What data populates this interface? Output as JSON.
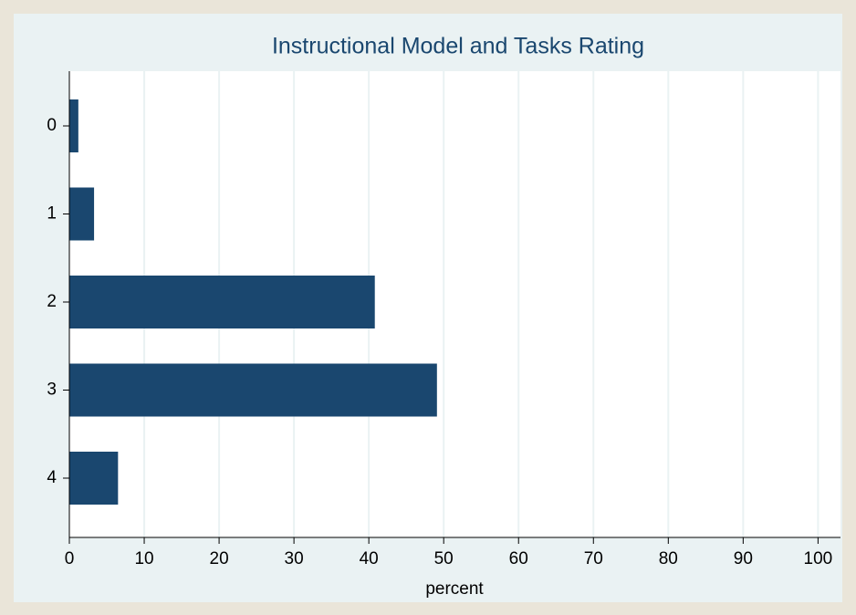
{
  "chart_data": {
    "type": "bar",
    "orientation": "horizontal",
    "title": "Instructional Model and Tasks Rating",
    "categories": [
      "0",
      "1",
      "2",
      "3",
      "4"
    ],
    "values": [
      1.2,
      3.3,
      40.8,
      49.1,
      6.5
    ],
    "color": "#1a476f",
    "x_label": "percent",
    "xlim": [
      0,
      103
    ],
    "xticks": [
      0,
      10,
      20,
      30,
      40,
      50,
      60,
      70,
      80,
      90,
      100
    ],
    "grid": true
  }
}
